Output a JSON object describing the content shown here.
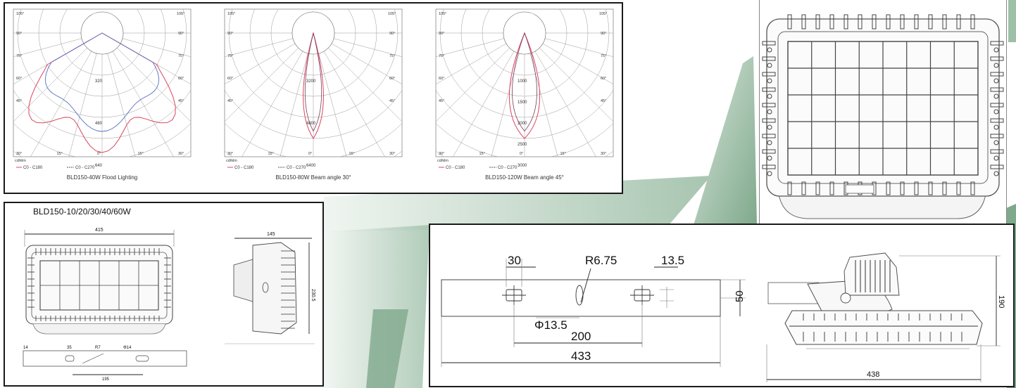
{
  "polar_charts": [
    {
      "caption": "BLD150-40W Flood Lighting",
      "unit": "cd/klm",
      "legend": [
        "C0 - C180",
        "C0 - C270"
      ],
      "ring_labels": [
        "320",
        "480",
        "640"
      ],
      "angle_labels_top": [
        "105°",
        "105°"
      ],
      "angle_labels_side": [
        "90°",
        "90°",
        "75°",
        "75°",
        "60°",
        "60°",
        "45°",
        "45°"
      ],
      "angle_labels_bottom": [
        "30°",
        "15°",
        "0°",
        "15°",
        "30°"
      ]
    },
    {
      "caption": "BLD150-80W Beam angle 30°",
      "unit": "cd/klm",
      "legend": [
        "C0 - C180",
        "C0 - C270"
      ],
      "ring_labels": [
        "3200",
        "4800",
        "6400"
      ],
      "angle_labels_top": [
        "105°",
        "105°"
      ],
      "angle_labels_side": [
        "90°",
        "90°",
        "75°",
        "75°",
        "60°",
        "60°",
        "45°",
        "45°"
      ],
      "angle_labels_bottom": [
        "30°",
        "15°",
        "0°",
        "15°",
        "30°"
      ]
    },
    {
      "caption": "BLD150-120W Beam angle 45°",
      "unit": "cd/klm",
      "legend": [
        "C0 - C180",
        "C0 - C270"
      ],
      "ring_labels": [
        "1000",
        "1500",
        "2000",
        "2500",
        "3000"
      ],
      "angle_labels_top": [
        "105°",
        "105°"
      ],
      "angle_labels_side": [
        "90°",
        "90°",
        "75°",
        "75°",
        "60°",
        "60°",
        "45°",
        "45°"
      ],
      "angle_labels_bottom": [
        "30°",
        "15°",
        "0°",
        "15°",
        "30°"
      ]
    }
  ],
  "small_drawing": {
    "title": "BLD150-10/20/30/40/60W",
    "dims": {
      "width": "415",
      "depth": "145",
      "height": "230.5",
      "slot_a": "14",
      "slot_b": "35",
      "radius": "R7",
      "hole": "Φ14",
      "spacing": "195"
    }
  },
  "large_drawing": {
    "dims": {
      "slot_width": "30",
      "radius": "R6.75",
      "slot_offset": "13.5",
      "bar_height": "50",
      "hole": "Φ13.5",
      "hole_spacing": "200",
      "bar_length": "433",
      "side_height": "190",
      "side_width": "438"
    }
  },
  "colors": {
    "green_dark": "#7fa98c",
    "green_light": "#c9dbcf",
    "curve_red": "#d9455f",
    "curve_blue": "#5a6fc0"
  }
}
